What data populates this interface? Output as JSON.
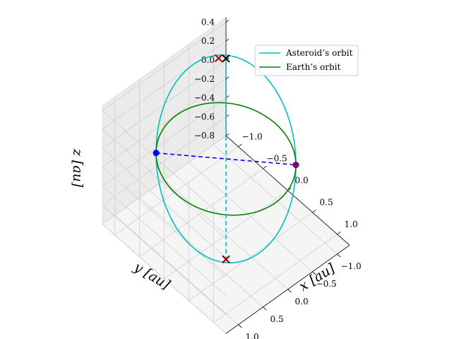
{
  "chart_data": {
    "type": "line",
    "projection": "3d",
    "xlabel": "x [au]",
    "ylabel": "y [au]",
    "zlabel": "z [au]",
    "xlim": [
      -1.25,
      1.25
    ],
    "ylim": [
      -1.25,
      1.25
    ],
    "zlim": [
      -0.8,
      0.45
    ],
    "x_ticks": [
      -1.0,
      -0.5,
      0.0,
      0.5,
      1.0
    ],
    "y_ticks": [
      1.0,
      0.5,
      0.0,
      -0.5,
      -1.0
    ],
    "z_ticks": [
      0.4,
      0.2,
      0.0,
      -0.2,
      -0.4,
      -0.6,
      -0.8
    ],
    "x_tick_labels": [
      "−1.0",
      "−0.5",
      "0.0",
      "0.5",
      "1.0"
    ],
    "y_tick_labels": [
      "1.0",
      "0.5",
      "0.0",
      "−0.5",
      "−1.0"
    ],
    "z_tick_labels": [
      "0.4",
      "0.2",
      "0.0",
      "−0.2",
      "−0.4",
      "−0.6",
      "−0.8"
    ],
    "grid": true,
    "legend_position": "upper-right",
    "series": [
      {
        "name": "Asteroid’s orbit",
        "color": "#00bfbf",
        "kind": "ellipse",
        "semi_major_axis": 1.0,
        "eccentricity": 0.0,
        "inclination_deg": 40,
        "ascending_node_deg": 135
      },
      {
        "name": "Earth’s orbit",
        "color": "#008000",
        "kind": "ellipse",
        "semi_major_axis": 1.0,
        "eccentricity": 0.0,
        "inclination_deg": 0,
        "ascending_node_deg": 0
      }
    ],
    "lines": [
      {
        "color": "#0000ff",
        "style": "dashed",
        "from": [
          -0.707,
          0.707,
          0.0
        ],
        "to": [
          0.707,
          -0.707,
          0.0
        ]
      },
      {
        "color": "#00bfbf",
        "style": "dashed",
        "from": [
          -0.5,
          -0.5,
          0.643
        ],
        "to": [
          0.5,
          0.5,
          -0.643
        ]
      }
    ],
    "points": [
      {
        "marker": "circle",
        "color": "#0000ff",
        "xyz": [
          -0.707,
          0.707,
          0.0
        ]
      },
      {
        "marker": "circle",
        "color": "#0000ff",
        "xyz": [
          0.707,
          -0.707,
          0.0
        ]
      },
      {
        "marker": "circle",
        "color": "#800080",
        "xyz": [
          0.707,
          -0.707,
          0.0
        ]
      },
      {
        "marker": "x",
        "color": "#000000",
        "xyz": [
          -0.5,
          -0.5,
          0.643
        ]
      },
      {
        "marker": "x",
        "color": "#000000",
        "xyz": [
          0.5,
          0.5,
          -0.643
        ]
      },
      {
        "marker": "x",
        "color": "#b00000",
        "xyz": [
          -0.57,
          -0.42,
          0.643
        ]
      },
      {
        "marker": "x",
        "color": "#b00000",
        "xyz": [
          0.5,
          0.5,
          -0.643
        ]
      }
    ]
  }
}
